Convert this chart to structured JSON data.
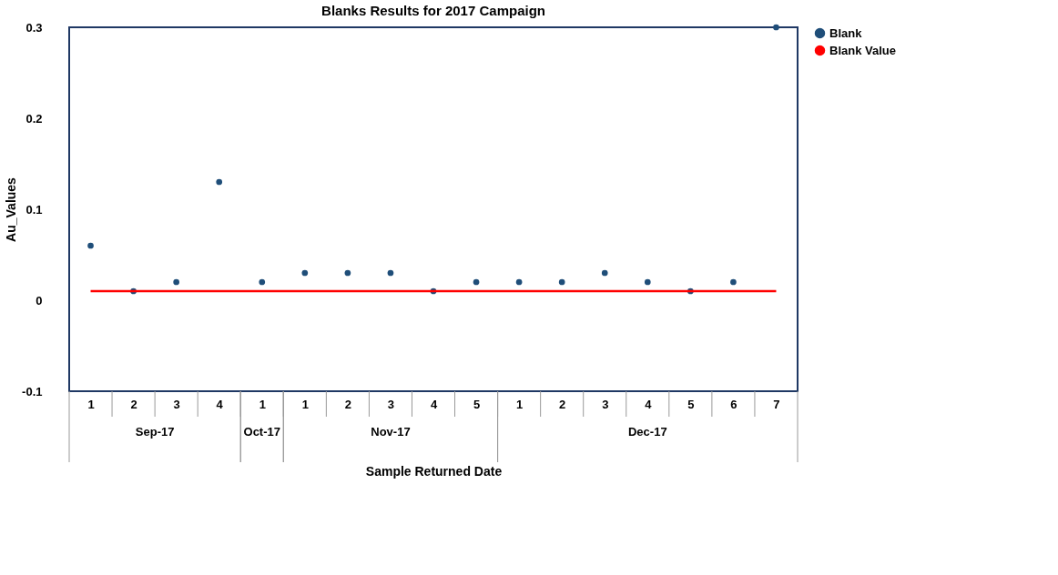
{
  "chart_data": {
    "type": "scatter",
    "title": "Blanks Results for 2017 Campaign",
    "xlabel": "Sample Returned Date",
    "ylabel": "Au_Values",
    "categories": [
      "1",
      "2",
      "3",
      "4",
      "1",
      "1",
      "2",
      "3",
      "4",
      "5",
      "1",
      "2",
      "3",
      "4",
      "5",
      "6",
      "7"
    ],
    "annotations": [
      "Sep-17",
      "Oct-17",
      "Nov-17",
      "Dec-17"
    ],
    "series": [
      {
        "name": "Blank",
        "color": "#1f4e79",
        "values": [
          0.06,
          0.01,
          0.02,
          0.13,
          0.02,
          0.03,
          0.03,
          0.03,
          0.01,
          0.02,
          0.02,
          0.02,
          0.03,
          0.02,
          0.01,
          0.02,
          0.3
        ]
      },
      {
        "name": "Blank Value",
        "type": "line",
        "marker": "none",
        "color": "#ff0000",
        "values": [
          0.01,
          0.01,
          0.01,
          0.01,
          0.01,
          0.01,
          0.01,
          0.01,
          0.01,
          0.01,
          0.01,
          0.01,
          0.01,
          0.01,
          0.01,
          0.01,
          0.01
        ]
      }
    ],
    "ylim": [
      -0.1,
      0.3
    ],
    "yticks": [
      -0.1,
      0,
      0.1,
      0.2,
      0.3
    ],
    "grid": false,
    "legend": "right",
    "marker": "circle",
    "line_style": "solid"
  }
}
